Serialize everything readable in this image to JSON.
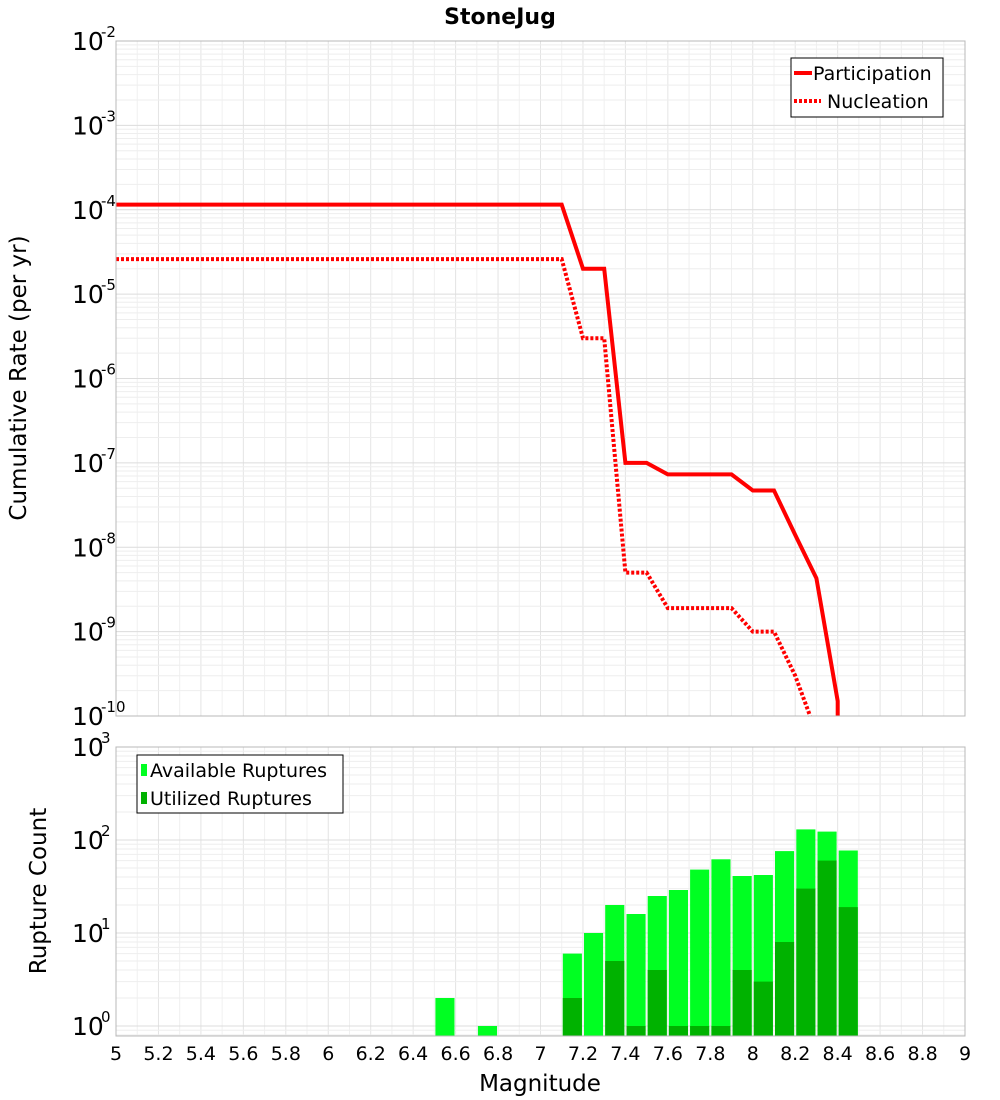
{
  "chart_data": [
    {
      "type": "line",
      "title": "StoneJug",
      "xlabel": "",
      "ylabel": "Cumulative Rate (per yr)",
      "y_scale": "log",
      "xlim": [
        5,
        9
      ],
      "ylim": [
        1e-10,
        0.01
      ],
      "y_ticks": [
        {
          "base": "10",
          "exp": "-2"
        },
        {
          "base": "10",
          "exp": "-3"
        },
        {
          "base": "10",
          "exp": "-4"
        },
        {
          "base": "10",
          "exp": "-5"
        },
        {
          "base": "10",
          "exp": "-6"
        },
        {
          "base": "10",
          "exp": "-7"
        },
        {
          "base": "10",
          "exp": "-8"
        },
        {
          "base": "10",
          "exp": "-9"
        },
        {
          "base": "10",
          "exp": "-10"
        }
      ],
      "legend_position": "top-right",
      "series": [
        {
          "name": "Participation",
          "color": "#ff0000",
          "style": "solid",
          "points": [
            [
              5.0,
              0.000115
            ],
            [
              7.1,
              0.000115
            ],
            [
              7.2,
              2e-05
            ],
            [
              7.3,
              2e-05
            ],
            [
              7.4,
              1e-07
            ],
            [
              7.5,
              1e-07
            ],
            [
              7.6,
              7.3e-08
            ],
            [
              7.7,
              7.3e-08
            ],
            [
              7.8,
              7.3e-08
            ],
            [
              7.9,
              7.3e-08
            ],
            [
              8.0,
              4.7e-08
            ],
            [
              8.1,
              4.7e-08
            ],
            [
              8.2,
              1.4e-08
            ],
            [
              8.3,
              4.3e-09
            ],
            [
              8.4,
              1.5e-10
            ],
            [
              8.4,
              1e-10
            ]
          ]
        },
        {
          "name": "Nucleation",
          "color": "#ff0000",
          "style": "dotted",
          "points": [
            [
              5.0,
              2.6e-05
            ],
            [
              7.1,
              2.6e-05
            ],
            [
              7.2,
              3e-06
            ],
            [
              7.3,
              3e-06
            ],
            [
              7.4,
              5e-09
            ],
            [
              7.5,
              5e-09
            ],
            [
              7.6,
              1.9e-09
            ],
            [
              7.7,
              1.9e-09
            ],
            [
              7.8,
              1.9e-09
            ],
            [
              7.9,
              1.9e-09
            ],
            [
              8.0,
              1e-09
            ],
            [
              8.1,
              1e-09
            ],
            [
              8.2,
              3e-10
            ],
            [
              8.27,
              1e-10
            ]
          ]
        }
      ]
    },
    {
      "type": "bar",
      "title": "",
      "xlabel": "Magnitude",
      "ylabel": "Rupture Count",
      "y_scale": "log",
      "xlim": [
        5,
        9
      ],
      "ylim": [
        0.78,
        1000
      ],
      "x_tick_labels": [
        "5",
        "5.2",
        "5.4",
        "5.6",
        "5.8",
        "6",
        "6.2",
        "6.4",
        "6.6",
        "6.8",
        "7",
        "7.2",
        "7.4",
        "7.6",
        "7.8",
        "8",
        "8.2",
        "8.4",
        "8.6",
        "8.8",
        "9"
      ],
      "y_ticks": [
        {
          "base": "10",
          "exp": "3"
        },
        {
          "base": "10",
          "exp": "2"
        },
        {
          "base": "10",
          "exp": "1"
        },
        {
          "base": "10",
          "exp": "0"
        }
      ],
      "bar_width": 0.09,
      "legend_position": "top-left",
      "series": [
        {
          "name": "Available Ruptures",
          "color": "#00ff22",
          "x": [
            6.55,
            6.75,
            7.15,
            7.25,
            7.35,
            7.45,
            7.55,
            7.65,
            7.75,
            7.85,
            7.95,
            8.05,
            8.15,
            8.25,
            8.35,
            8.45
          ],
          "values": [
            2,
            1,
            6,
            10,
            20,
            16,
            25,
            29,
            48,
            62,
            41,
            42,
            76,
            130,
            123,
            77
          ]
        },
        {
          "name": "Utilized Ruptures",
          "color": "#00b200",
          "x": [
            7.15,
            7.35,
            7.45,
            7.55,
            7.65,
            7.75,
            7.85,
            7.95,
            8.05,
            8.15,
            8.25,
            8.35,
            8.45
          ],
          "values": [
            2,
            5,
            1,
            4,
            1,
            1,
            1,
            4,
            3,
            8,
            30,
            60,
            19
          ]
        }
      ]
    }
  ]
}
